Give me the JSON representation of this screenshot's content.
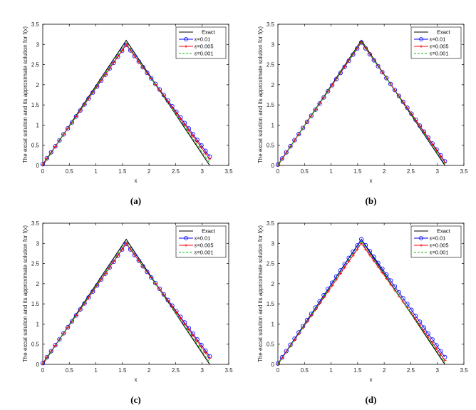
{
  "chart_data": [
    {
      "panel": "(a)",
      "type": "line",
      "xlabel": "x",
      "ylabel": "The excat solution and its approximate solution for f(x)",
      "xlim": [
        0,
        3.5
      ],
      "ylim": [
        0,
        3.5
      ],
      "xticks": [
        "0",
        "0.5",
        "1",
        "1.5",
        "2",
        "2.5",
        "3",
        "3.5"
      ],
      "yticks": [
        "0",
        "0.5",
        "1",
        "1.5",
        "2",
        "2.5",
        "3",
        "3.5"
      ],
      "legend_position": "top-right",
      "series": [
        {
          "name": "Exact",
          "color": "#000000",
          "style": "solid",
          "marker": "none",
          "x": [
            0,
            1.5708,
            3.1416
          ],
          "y": [
            0,
            3.1,
            0.0
          ]
        },
        {
          "name": "ε=0.01",
          "color": "#0000ff",
          "style": "solid",
          "marker": "circle",
          "x": [
            0,
            1.5708,
            3.1416
          ],
          "y": [
            0.03,
            2.99,
            0.22
          ]
        },
        {
          "name": "ε=0.005",
          "color": "#ff0000",
          "style": "solid",
          "marker": "plus",
          "x": [
            0,
            1.5708,
            3.1416
          ],
          "y": [
            0.02,
            3.0,
            0.16
          ]
        },
        {
          "name": "ε=0.001",
          "color": "#00bb00",
          "style": "dashed",
          "marker": "none",
          "x": [
            0,
            1.5708,
            3.1416
          ],
          "y": [
            0.01,
            3.04,
            0.06
          ]
        }
      ]
    },
    {
      "panel": "(b)",
      "type": "line",
      "xlabel": "x",
      "ylabel": "The excat solution and its approximate solution for f(x)",
      "xlim": [
        0,
        3.5
      ],
      "ylim": [
        0,
        3.5
      ],
      "xticks": [
        "0",
        "0.5",
        "1",
        "1.5",
        "2",
        "2.5",
        "3",
        "3.5"
      ],
      "yticks": [
        "0",
        "0.5",
        "1",
        "1.5",
        "2",
        "2.5",
        "3",
        "3.5"
      ],
      "legend_position": "top-right",
      "series": [
        {
          "name": "Exact",
          "color": "#000000",
          "style": "solid",
          "marker": "none",
          "x": [
            0,
            1.5708,
            3.1416
          ],
          "y": [
            0,
            3.1,
            0.0
          ]
        },
        {
          "name": "ε=0.01",
          "color": "#0000ff",
          "style": "solid",
          "marker": "circle",
          "x": [
            0,
            1.5708,
            3.1416
          ],
          "y": [
            0.02,
            3.05,
            0.1
          ]
        },
        {
          "name": "ε=0.005",
          "color": "#ff0000",
          "style": "solid",
          "marker": "plus",
          "x": [
            0,
            1.5708,
            3.1416
          ],
          "y": [
            0.01,
            3.06,
            0.08
          ]
        },
        {
          "name": "ε=0.001",
          "color": "#00bb00",
          "style": "dashed",
          "marker": "none",
          "x": [
            0,
            1.5708,
            3.1416
          ],
          "y": [
            0.0,
            3.08,
            0.03
          ]
        }
      ]
    },
    {
      "panel": "(c)",
      "type": "line",
      "xlabel": "x",
      "ylabel": "The excat solution and its approximate solution for f(x)",
      "xlim": [
        0,
        3.5
      ],
      "ylim": [
        0,
        3.5
      ],
      "xticks": [
        "0",
        "0.5",
        "1",
        "1.5",
        "2",
        "2.5",
        "3",
        "3.5"
      ],
      "yticks": [
        "0",
        "0.5",
        "1",
        "1.5",
        "2",
        "2.5",
        "3",
        "3.5"
      ],
      "legend_position": "top-right",
      "series": [
        {
          "name": "Exact",
          "color": "#000000",
          "style": "solid",
          "marker": "none",
          "x": [
            0,
            1.5708,
            3.1416
          ],
          "y": [
            0,
            3.1,
            0.0
          ]
        },
        {
          "name": "ε=0.01",
          "color": "#0000ff",
          "style": "solid",
          "marker": "circle",
          "x": [
            0,
            1.5708,
            3.1416
          ],
          "y": [
            0.03,
            2.99,
            0.2
          ]
        },
        {
          "name": "ε=0.005",
          "color": "#ff0000",
          "style": "solid",
          "marker": "plus",
          "x": [
            0,
            1.5708,
            3.1416
          ],
          "y": [
            0.02,
            3.0,
            0.15
          ]
        },
        {
          "name": "ε=0.001",
          "color": "#00bb00",
          "style": "dashed",
          "marker": "none",
          "x": [
            0,
            1.5708,
            3.1416
          ],
          "y": [
            0.01,
            3.04,
            0.05
          ]
        }
      ]
    },
    {
      "panel": "(d)",
      "type": "line",
      "xlabel": "x",
      "ylabel": "The excat solution and its approximate solution for f(x)",
      "xlim": [
        0,
        3.5
      ],
      "ylim": [
        0,
        3.5
      ],
      "xticks": [
        "0",
        "0.5",
        "1",
        "1.5",
        "2",
        "2.5",
        "3",
        "3.5"
      ],
      "yticks": [
        "0",
        "0.5",
        "1",
        "1.5",
        "2",
        "2.5",
        "3",
        "3.5"
      ],
      "legend_position": "top-right",
      "series": [
        {
          "name": "Exact",
          "color": "#000000",
          "style": "solid",
          "marker": "none",
          "x": [
            0,
            1.5708,
            3.1416
          ],
          "y": [
            0,
            3.1,
            0.0
          ]
        },
        {
          "name": "ε=0.01",
          "color": "#0000ff",
          "style": "solid",
          "marker": "circle",
          "x": [
            0,
            1.5708,
            3.1416
          ],
          "y": [
            0.02,
            3.1,
            0.18
          ]
        },
        {
          "name": "ε=0.005",
          "color": "#ff0000",
          "style": "solid",
          "marker": "plus",
          "x": [
            0,
            1.5708,
            3.1416
          ],
          "y": [
            0.01,
            3.0,
            0.1
          ]
        },
        {
          "name": "ε=0.001",
          "color": "#00bb00",
          "style": "dashed",
          "marker": "none",
          "x": [
            0,
            1.5708,
            3.1416
          ],
          "y": [
            0.0,
            3.06,
            0.04
          ]
        }
      ]
    }
  ]
}
